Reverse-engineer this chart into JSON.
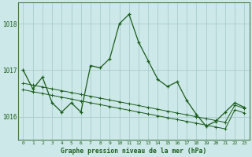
{
  "title": "Graphe pression niveau de la mer (hPa)",
  "background_color": "#cce8e8",
  "grid_color": "#aacccc",
  "line_color": "#1a5c1a",
  "x_labels": [
    "0",
    "1",
    "2",
    "3",
    "4",
    "5",
    "6",
    "7",
    "8",
    "9",
    "10",
    "11",
    "12",
    "13",
    "14",
    "15",
    "16",
    "17",
    "18",
    "19",
    "20",
    "21",
    "22",
    "23"
  ],
  "series_main": [
    1017.0,
    1016.6,
    1016.85,
    1016.3,
    1016.1,
    1016.3,
    1016.1,
    1017.1,
    1017.05,
    1017.25,
    1018.0,
    1018.2,
    1017.6,
    1017.2,
    1016.8,
    1016.65,
    1016.75,
    1016.35,
    1016.05,
    1015.8,
    1015.9,
    1016.1,
    1016.3,
    1016.2
  ],
  "series_trend1": [
    1016.72,
    1016.68,
    1016.64,
    1016.6,
    1016.56,
    1016.52,
    1016.48,
    1016.44,
    1016.4,
    1016.36,
    1016.32,
    1016.28,
    1016.24,
    1016.2,
    1016.16,
    1016.12,
    1016.08,
    1016.04,
    1016.0,
    1015.96,
    1015.92,
    1015.88,
    1016.25,
    1016.18
  ],
  "series_trend2": [
    1016.58,
    1016.54,
    1016.5,
    1016.46,
    1016.42,
    1016.38,
    1016.34,
    1016.3,
    1016.26,
    1016.22,
    1016.18,
    1016.14,
    1016.1,
    1016.06,
    1016.02,
    1015.98,
    1015.94,
    1015.9,
    1015.86,
    1015.82,
    1015.78,
    1015.74,
    1016.15,
    1016.08
  ],
  "ylim": [
    1015.5,
    1018.45
  ],
  "yticks": [
    1016,
    1017,
    1018
  ],
  "figsize": [
    3.2,
    2.0
  ],
  "dpi": 100
}
